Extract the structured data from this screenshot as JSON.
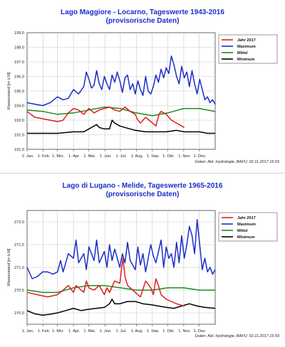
{
  "charts": [
    {
      "title": "Lago Maggiore - Locarno, Tageswerte 1943-2016",
      "subtitle": "(provisorische Daten)",
      "source": "Daten: Abt. Hydrologie, BAFU; 02.11.2017 15:03"
    },
    {
      "title": "Lago di Lugano - Melide, Tageswerte 1965-2016",
      "subtitle": "(provisorische Daten)",
      "source": "Daten: Abt. Hydrologie, BAFU; 02.11.2017 15:03"
    }
  ],
  "colors": {
    "jahr": "#dd1f1f",
    "maximum": "#1a2ec8",
    "mittel": "#1e8a1e",
    "minimum": "#000000",
    "title": "#1a2ec8",
    "grid": "#c8c8c8"
  },
  "chart_data": [
    {
      "type": "line",
      "title": "Lago Maggiore - Locarno, Tageswerte 1943-2016",
      "subtitle": "(provisorische Daten)",
      "ylabel": "Wasserstand [m ü.M]",
      "xlabel": "",
      "ylim": [
        191.0,
        199.0
      ],
      "yticks": [
        "191.0",
        "192.0",
        "193.0",
        "194.0",
        "195.0",
        "196.0",
        "197.0",
        "198.0",
        "199.0"
      ],
      "xticks": [
        "1. Jan.",
        "1. Feb.",
        "1. Mrz.",
        "1. Apr.",
        "1. Mai.",
        "1. Jun.",
        "1. Jul.",
        "1. Aug.",
        "1. Sep.",
        "1. Okt.",
        "1. Nov.",
        "1. Dez."
      ],
      "legend_position": "top-right",
      "grid": true,
      "series": [
        {
          "name": "Jahr 2017",
          "color_key": "jahr",
          "x": [
            0,
            15,
            30,
            45,
            59,
            70,
            80,
            90,
            100,
            110,
            120,
            130,
            140,
            150,
            160,
            170,
            180,
            190,
            200,
            210,
            215,
            220,
            230,
            240,
            250,
            256,
            260,
            270,
            280,
            290,
            300,
            305
          ],
          "y": [
            193.6,
            193.2,
            193.1,
            193.0,
            192.9,
            193.0,
            193.5,
            193.8,
            193.7,
            193.4,
            193.8,
            193.5,
            193.7,
            193.8,
            193.9,
            193.7,
            193.6,
            193.9,
            193.6,
            193.4,
            193.0,
            192.8,
            193.2,
            192.9,
            192.6,
            193.4,
            193.6,
            193.4,
            193.0,
            192.8,
            192.6,
            192.5
          ]
        },
        {
          "name": "Maximum",
          "color_key": "maximum",
          "x": [
            0,
            15,
            30,
            45,
            59,
            70,
            80,
            90,
            100,
            110,
            115,
            120,
            125,
            130,
            135,
            140,
            145,
            150,
            155,
            160,
            165,
            170,
            175,
            180,
            185,
            190,
            195,
            200,
            205,
            210,
            215,
            220,
            225,
            230,
            235,
            240,
            245,
            250,
            255,
            260,
            265,
            270,
            275,
            280,
            285,
            290,
            295,
            300,
            305,
            310,
            315,
            320,
            325,
            330,
            335,
            340,
            345,
            350,
            355,
            360,
            365
          ],
          "y": [
            194.2,
            194.1,
            194.0,
            194.2,
            194.6,
            194.4,
            194.5,
            195.1,
            194.8,
            195.3,
            196.3,
            195.8,
            195.2,
            195.4,
            196.4,
            195.5,
            195.1,
            196.0,
            195.5,
            195.1,
            196.1,
            195.6,
            196.3,
            195.7,
            194.9,
            195.9,
            196.1,
            195.1,
            195.5,
            194.8,
            195.7,
            195.1,
            194.7,
            196.0,
            195.0,
            194.8,
            195.3,
            196.1,
            195.6,
            196.5,
            195.9,
            196.6,
            196.2,
            197.4,
            196.8,
            196.0,
            195.5,
            196.7,
            195.9,
            196.3,
            195.3,
            196.4,
            195.5,
            194.8,
            195.8,
            195.1,
            194.4,
            194.6,
            194.2,
            194.4,
            194.1
          ]
        },
        {
          "name": "Mittel",
          "color_key": "mittel",
          "x": [
            0,
            31,
            59,
            90,
            120,
            151,
            181,
            212,
            243,
            273,
            304,
            334,
            365
          ],
          "y": [
            193.7,
            193.6,
            193.4,
            193.5,
            193.7,
            193.9,
            193.8,
            193.5,
            193.3,
            193.5,
            193.8,
            193.8,
            193.6
          ]
        },
        {
          "name": "Minimum",
          "color_key": "minimum",
          "x": [
            0,
            30,
            59,
            90,
            110,
            120,
            135,
            140,
            150,
            160,
            165,
            170,
            180,
            190,
            200,
            210,
            230,
            250,
            270,
            290,
            305,
            320,
            335,
            350,
            365
          ],
          "y": [
            192.1,
            192.1,
            192.1,
            192.2,
            192.2,
            192.4,
            192.7,
            192.5,
            192.4,
            192.4,
            193.0,
            192.8,
            192.6,
            192.5,
            192.4,
            192.3,
            192.2,
            192.2,
            192.2,
            192.3,
            192.2,
            192.2,
            192.2,
            192.1,
            192.1
          ]
        }
      ]
    },
    {
      "type": "line",
      "title": "Lago di Lugano - Melide, Tageswerte 1965-2016",
      "subtitle": "(provisorische Daten)",
      "ylabel": "Wasserstand [m ü.M]",
      "xlabel": "",
      "ylim": [
        269.75,
        272.25
      ],
      "yticks": [
        "270.0",
        "270.5",
        "271.0",
        "271.5",
        "272.0"
      ],
      "xticks": [
        "1. Jan.",
        "1. Feb.",
        "1. Mrz.",
        "1. Apr.",
        "1. Mai.",
        "1. Jun.",
        "1. Jul.",
        "1. Aug.",
        "1. Sep.",
        "1. Okt.",
        "1. Nov.",
        "1. Dez."
      ],
      "legend_position": "top-right",
      "grid": true,
      "series": [
        {
          "name": "Jahr 2017",
          "color_key": "jahr",
          "x": [
            0,
            20,
            40,
            59,
            70,
            80,
            90,
            95,
            100,
            110,
            115,
            120,
            130,
            140,
            150,
            155,
            160,
            170,
            180,
            186,
            190,
            195,
            200,
            210,
            215,
            220,
            230,
            240,
            245,
            250,
            255,
            260,
            270,
            280,
            290,
            305
          ],
          "y": [
            270.45,
            270.4,
            270.35,
            270.4,
            270.5,
            270.6,
            270.45,
            270.6,
            270.55,
            270.45,
            270.7,
            270.55,
            270.5,
            270.6,
            270.4,
            270.55,
            270.45,
            270.7,
            270.65,
            271.2,
            270.8,
            270.6,
            270.55,
            270.45,
            270.4,
            270.35,
            270.7,
            270.55,
            270.4,
            270.75,
            270.6,
            270.4,
            270.3,
            270.25,
            270.2,
            270.15
          ]
        },
        {
          "name": "Maximum",
          "color_key": "maximum",
          "x": [
            0,
            10,
            20,
            30,
            40,
            50,
            59,
            65,
            70,
            80,
            90,
            95,
            100,
            110,
            115,
            120,
            130,
            135,
            140,
            150,
            155,
            160,
            165,
            170,
            180,
            185,
            190,
            195,
            200,
            210,
            215,
            220,
            225,
            230,
            240,
            245,
            250,
            260,
            265,
            270,
            275,
            280,
            285,
            290,
            295,
            300,
            305,
            310,
            315,
            320,
            325,
            330,
            335,
            340,
            345,
            350,
            355,
            360,
            365
          ],
          "y": [
            271.0,
            270.75,
            270.8,
            270.9,
            270.9,
            270.85,
            270.9,
            271.15,
            270.9,
            271.3,
            271.2,
            271.6,
            271.1,
            271.3,
            270.95,
            271.45,
            271.15,
            271.6,
            271.1,
            271.35,
            271.0,
            271.5,
            271.15,
            271.4,
            271.0,
            271.3,
            271.1,
            271.55,
            271.15,
            270.95,
            271.45,
            271.05,
            271.3,
            270.9,
            271.5,
            271.25,
            271.1,
            271.6,
            271.0,
            271.45,
            271.2,
            271.3,
            271.0,
            271.55,
            271.1,
            271.7,
            271.2,
            271.5,
            271.9,
            271.7,
            271.3,
            272.05,
            271.5,
            270.95,
            271.2,
            270.9,
            271.0,
            270.85,
            270.95
          ]
        },
        {
          "name": "Mittel",
          "color_key": "mittel",
          "x": [
            0,
            31,
            59,
            90,
            120,
            151,
            181,
            212,
            243,
            273,
            304,
            334,
            365
          ],
          "y": [
            270.5,
            270.45,
            270.45,
            270.55,
            270.6,
            270.6,
            270.55,
            270.5,
            270.5,
            270.55,
            270.55,
            270.5,
            270.5
          ]
        },
        {
          "name": "Minimum",
          "color_key": "minimum",
          "x": [
            0,
            15,
            30,
            45,
            59,
            75,
            90,
            105,
            120,
            135,
            150,
            160,
            165,
            170,
            180,
            195,
            210,
            225,
            240,
            255,
            270,
            285,
            300,
            315,
            330,
            345,
            365
          ],
          "y": [
            270.05,
            269.98,
            269.95,
            269.97,
            270.0,
            270.05,
            270.1,
            270.05,
            270.08,
            270.1,
            270.12,
            270.2,
            270.3,
            270.2,
            270.2,
            270.25,
            270.25,
            270.2,
            270.18,
            270.15,
            270.12,
            270.1,
            270.15,
            270.2,
            270.15,
            270.12,
            270.1
          ]
        }
      ]
    }
  ]
}
